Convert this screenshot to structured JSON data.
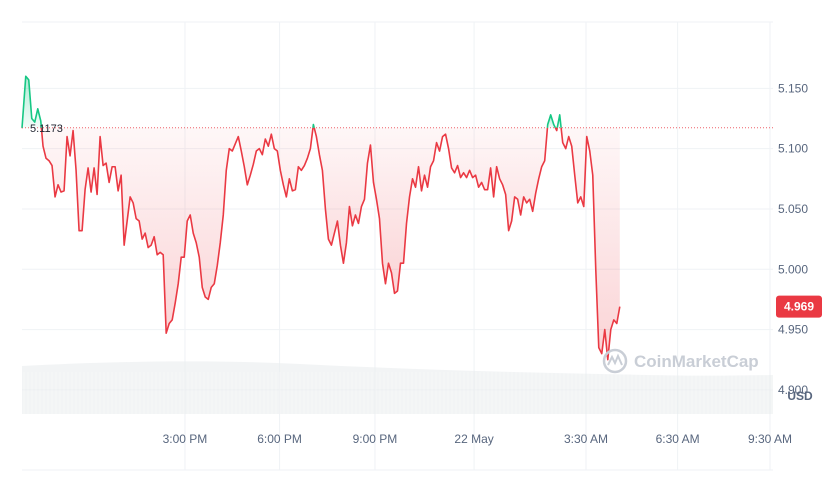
{
  "chart_data": {
    "type": "area",
    "currency": "USD",
    "reference_price": 5.1173,
    "reference_label": "5.1173",
    "current_price": 4.969,
    "current_label": "4.969",
    "ylim": [
      4.88,
      5.205
    ],
    "y_ticks": [
      {
        "value": 5.15,
        "label": "5.150"
      },
      {
        "value": 5.1,
        "label": "5.100"
      },
      {
        "value": 5.05,
        "label": "5.050"
      },
      {
        "value": 5.0,
        "label": "5.000"
      },
      {
        "value": 4.95,
        "label": "4.950"
      },
      {
        "value": 4.9,
        "label": "4.900"
      }
    ],
    "x_range": [
      0,
      1
    ],
    "x_ticks": [
      {
        "x": 0.217,
        "label": "3:00 PM"
      },
      {
        "x": 0.343,
        "label": "6:00 PM"
      },
      {
        "x": 0.47,
        "label": "9:00 PM"
      },
      {
        "x": 0.602,
        "label": "22 May"
      },
      {
        "x": 0.751,
        "label": "3:30 AM"
      },
      {
        "x": 0.873,
        "label": "6:30 AM"
      },
      {
        "x": 0.996,
        "label": "9:30 AM"
      }
    ],
    "colors": {
      "up": "#16c784",
      "down": "#ea3943",
      "grid": "#eff2f5",
      "volume": "#eaecef"
    },
    "watermark": "CoinMarketCap",
    "series": [
      {
        "points": [
          [
            0.0,
            5.117
          ],
          [
            0.005,
            5.16
          ],
          [
            0.009,
            5.157
          ],
          [
            0.013,
            5.125
          ],
          [
            0.017,
            5.122
          ],
          [
            0.021,
            5.133
          ],
          [
            0.025,
            5.123
          ],
          [
            0.028,
            5.102
          ],
          [
            0.032,
            5.092
          ],
          [
            0.036,
            5.09
          ],
          [
            0.04,
            5.086
          ],
          [
            0.044,
            5.06
          ],
          [
            0.048,
            5.07
          ],
          [
            0.052,
            5.064
          ],
          [
            0.056,
            5.065
          ],
          [
            0.06,
            5.11
          ],
          [
            0.064,
            5.094
          ],
          [
            0.068,
            5.115
          ],
          [
            0.072,
            5.082
          ],
          [
            0.076,
            5.032
          ],
          [
            0.08,
            5.032
          ],
          [
            0.084,
            5.066
          ],
          [
            0.088,
            5.084
          ],
          [
            0.092,
            5.064
          ],
          [
            0.096,
            5.084
          ],
          [
            0.1,
            5.062
          ],
          [
            0.104,
            5.11
          ],
          [
            0.108,
            5.086
          ],
          [
            0.112,
            5.088
          ],
          [
            0.116,
            5.072
          ],
          [
            0.12,
            5.085
          ],
          [
            0.124,
            5.085
          ],
          [
            0.128,
            5.065
          ],
          [
            0.132,
            5.078
          ],
          [
            0.136,
            5.02
          ],
          [
            0.14,
            5.04
          ],
          [
            0.144,
            5.06
          ],
          [
            0.148,
            5.055
          ],
          [
            0.152,
            5.042
          ],
          [
            0.156,
            5.04
          ],
          [
            0.16,
            5.025
          ],
          [
            0.164,
            5.03
          ],
          [
            0.168,
            5.018
          ],
          [
            0.172,
            5.02
          ],
          [
            0.176,
            5.027
          ],
          [
            0.18,
            5.012
          ],
          [
            0.184,
            5.014
          ],
          [
            0.188,
            5.012
          ],
          [
            0.192,
            4.947
          ],
          [
            0.196,
            4.955
          ],
          [
            0.2,
            4.958
          ],
          [
            0.204,
            4.972
          ],
          [
            0.208,
            4.988
          ],
          [
            0.212,
            5.01
          ],
          [
            0.216,
            5.01
          ],
          [
            0.22,
            5.04
          ],
          [
            0.224,
            5.045
          ],
          [
            0.228,
            5.03
          ],
          [
            0.232,
            5.022
          ],
          [
            0.236,
            5.01
          ],
          [
            0.24,
            4.985
          ],
          [
            0.244,
            4.977
          ],
          [
            0.248,
            4.975
          ],
          [
            0.252,
            4.985
          ],
          [
            0.256,
            4.988
          ],
          [
            0.26,
            5.003
          ],
          [
            0.264,
            5.022
          ],
          [
            0.268,
            5.045
          ],
          [
            0.272,
            5.082
          ],
          [
            0.276,
            5.1
          ],
          [
            0.28,
            5.098
          ],
          [
            0.284,
            5.104
          ],
          [
            0.288,
            5.11
          ],
          [
            0.292,
            5.098
          ],
          [
            0.296,
            5.085
          ],
          [
            0.3,
            5.07
          ],
          [
            0.304,
            5.078
          ],
          [
            0.308,
            5.087
          ],
          [
            0.312,
            5.098
          ],
          [
            0.316,
            5.1
          ],
          [
            0.32,
            5.095
          ],
          [
            0.324,
            5.108
          ],
          [
            0.328,
            5.102
          ],
          [
            0.332,
            5.112
          ],
          [
            0.336,
            5.1
          ],
          [
            0.34,
            5.098
          ],
          [
            0.344,
            5.082
          ],
          [
            0.348,
            5.07
          ],
          [
            0.352,
            5.06
          ],
          [
            0.356,
            5.075
          ],
          [
            0.36,
            5.065
          ],
          [
            0.364,
            5.066
          ],
          [
            0.368,
            5.085
          ],
          [
            0.372,
            5.082
          ],
          [
            0.376,
            5.086
          ],
          [
            0.38,
            5.092
          ],
          [
            0.384,
            5.1
          ],
          [
            0.388,
            5.12
          ],
          [
            0.392,
            5.11
          ],
          [
            0.396,
            5.095
          ],
          [
            0.4,
            5.082
          ],
          [
            0.404,
            5.05
          ],
          [
            0.408,
            5.025
          ],
          [
            0.412,
            5.02
          ],
          [
            0.416,
            5.03
          ],
          [
            0.42,
            5.04
          ],
          [
            0.424,
            5.02
          ],
          [
            0.428,
            5.005
          ],
          [
            0.432,
            5.022
          ],
          [
            0.436,
            5.052
          ],
          [
            0.44,
            5.036
          ],
          [
            0.444,
            5.045
          ],
          [
            0.448,
            5.038
          ],
          [
            0.452,
            5.052
          ],
          [
            0.456,
            5.058
          ],
          [
            0.46,
            5.088
          ],
          [
            0.464,
            5.103
          ],
          [
            0.468,
            5.072
          ],
          [
            0.472,
            5.058
          ],
          [
            0.476,
            5.042
          ],
          [
            0.48,
            5.005
          ],
          [
            0.484,
            4.988
          ],
          [
            0.488,
            5.005
          ],
          [
            0.492,
            4.997
          ],
          [
            0.496,
            4.98
          ],
          [
            0.5,
            4.982
          ],
          [
            0.504,
            5.005
          ],
          [
            0.508,
            5.005
          ],
          [
            0.512,
            5.038
          ],
          [
            0.516,
            5.06
          ],
          [
            0.52,
            5.075
          ],
          [
            0.524,
            5.068
          ],
          [
            0.528,
            5.085
          ],
          [
            0.532,
            5.065
          ],
          [
            0.536,
            5.078
          ],
          [
            0.54,
            5.068
          ],
          [
            0.544,
            5.085
          ],
          [
            0.548,
            5.09
          ],
          [
            0.552,
            5.105
          ],
          [
            0.556,
            5.098
          ],
          [
            0.56,
            5.11
          ],
          [
            0.564,
            5.112
          ],
          [
            0.568,
            5.1
          ],
          [
            0.572,
            5.084
          ],
          [
            0.576,
            5.08
          ],
          [
            0.58,
            5.086
          ],
          [
            0.584,
            5.076
          ],
          [
            0.588,
            5.08
          ],
          [
            0.592,
            5.076
          ],
          [
            0.596,
            5.082
          ],
          [
            0.6,
            5.076
          ],
          [
            0.604,
            5.078
          ],
          [
            0.608,
            5.068
          ],
          [
            0.612,
            5.072
          ],
          [
            0.616,
            5.066
          ],
          [
            0.62,
            5.066
          ],
          [
            0.624,
            5.084
          ],
          [
            0.628,
            5.06
          ],
          [
            0.632,
            5.085
          ],
          [
            0.636,
            5.075
          ],
          [
            0.64,
            5.07
          ],
          [
            0.644,
            5.062
          ],
          [
            0.648,
            5.032
          ],
          [
            0.652,
            5.04
          ],
          [
            0.656,
            5.06
          ],
          [
            0.66,
            5.058
          ],
          [
            0.664,
            5.045
          ],
          [
            0.668,
            5.06
          ],
          [
            0.672,
            5.055
          ],
          [
            0.676,
            5.058
          ],
          [
            0.68,
            5.048
          ],
          [
            0.684,
            5.063
          ],
          [
            0.688,
            5.075
          ],
          [
            0.692,
            5.085
          ],
          [
            0.696,
            5.09
          ],
          [
            0.7,
            5.12
          ],
          [
            0.704,
            5.128
          ],
          [
            0.708,
            5.12
          ],
          [
            0.712,
            5.115
          ],
          [
            0.716,
            5.128
          ],
          [
            0.72,
            5.105
          ],
          [
            0.724,
            5.1
          ],
          [
            0.728,
            5.11
          ],
          [
            0.732,
            5.102
          ],
          [
            0.736,
            5.078
          ],
          [
            0.74,
            5.055
          ],
          [
            0.744,
            5.06
          ],
          [
            0.748,
            5.052
          ],
          [
            0.752,
            5.11
          ],
          [
            0.756,
            5.098
          ],
          [
            0.76,
            5.078
          ],
          [
            0.764,
            5.0
          ],
          [
            0.768,
            4.935
          ],
          [
            0.772,
            4.93
          ],
          [
            0.776,
            4.95
          ],
          [
            0.78,
            4.925
          ],
          [
            0.784,
            4.95
          ],
          [
            0.788,
            4.958
          ],
          [
            0.792,
            4.955
          ],
          [
            0.796,
            4.969
          ]
        ]
      }
    ]
  }
}
